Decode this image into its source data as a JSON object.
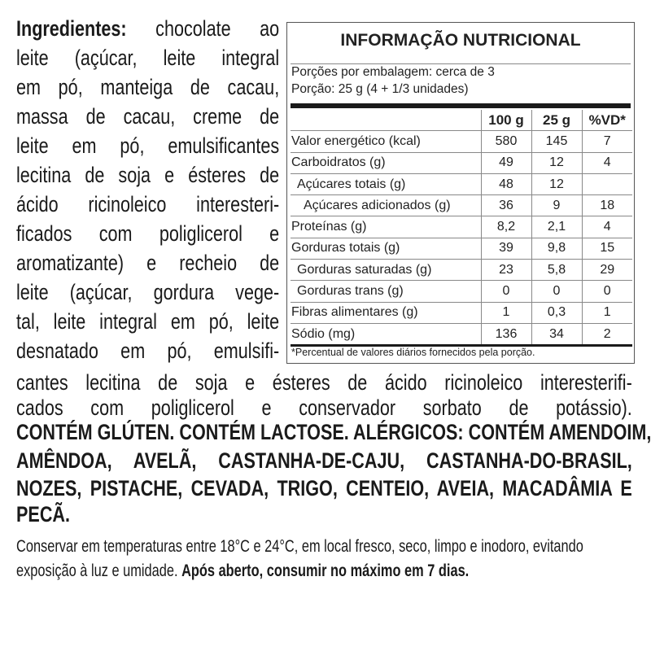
{
  "ingredients": {
    "label": "Ingredientes:",
    "lines_narrow": [
      "chocolate ao",
      "leite (açúcar, leite integral",
      "em pó, manteiga de cacau,",
      "massa de cacau, creme de",
      "leite em pó, emulsificantes",
      "lecitina de soja e ésteres de",
      "ácido ricinoleico interesteri-",
      "ficados com poliglicerol e",
      "aromatizante) e recheio de",
      "leite (açúcar, gordura vege-",
      "tal, leite integral em pó, leite",
      "desnatado em pó, emulsifi-"
    ],
    "lines_wide": [
      "cantes lecitina de soja e ésteres de ácido ricinoleico interesterifi-",
      "cados com poliglicerol e conservador sorbato de potássio)."
    ]
  },
  "allergens": [
    "CONTÉM GLÚTEN. CONTÉM LACTOSE. ALÉRGICOS: CONTÉM AMENDOIM,",
    "AMÊNDOA, AVELÃ, CASTANHA-DE-CAJU, CASTANHA-DO-BRASIL,",
    "NOZES, PISTACHE, CEVADA, TRIGO, CENTEIO, AVEIA, MACADÂMIA E",
    "PECÃ."
  ],
  "storage": {
    "line1": "Conservar em temperaturas entre 18°C e 24°C, em local fresco, seco, limpo e inodoro, evitando",
    "line2": "exposição à luz e umidade.",
    "line2_bold": "Após aberto, consumir no máximo em 7 dias."
  },
  "nutrition": {
    "title": "INFORMAÇÃO NUTRICIONAL",
    "servings": "Porções por embalagem: cerca de 3",
    "portion": "Porção: 25 g (4 + 1/3 unidades)",
    "columns": [
      "100 g",
      "25 g",
      "%VD*"
    ],
    "rows": [
      {
        "label": "Valor energético (kcal)",
        "indent": 0,
        "v100": "580",
        "v25": "145",
        "vd": "7"
      },
      {
        "label": "Carboidratos (g)",
        "indent": 0,
        "v100": "49",
        "v25": "12",
        "vd": "4"
      },
      {
        "label": "Açúcares totais (g)",
        "indent": 1,
        "v100": "48",
        "v25": "12",
        "vd": ""
      },
      {
        "label": "Açúcares adicionados (g)",
        "indent": 2,
        "v100": "36",
        "v25": "9",
        "vd": "18"
      },
      {
        "label": "Proteínas (g)",
        "indent": 0,
        "v100": "8,2",
        "v25": "2,1",
        "vd": "4"
      },
      {
        "label": "Gorduras totais (g)",
        "indent": 0,
        "v100": "39",
        "v25": "9,8",
        "vd": "15"
      },
      {
        "label": "Gorduras saturadas (g)",
        "indent": 1,
        "v100": "23",
        "v25": "5,8",
        "vd": "29"
      },
      {
        "label": "Gorduras trans (g)",
        "indent": 1,
        "v100": "0",
        "v25": "0",
        "vd": "0"
      },
      {
        "label": "Fibras alimentares (g)",
        "indent": 0,
        "v100": "1",
        "v25": "0,3",
        "vd": "1"
      },
      {
        "label": "Sódio (mg)",
        "indent": 0,
        "v100": "136",
        "v25": "34",
        "vd": "2"
      }
    ],
    "footnote": "*Percentual de valores diários fornecidos pela porção."
  }
}
